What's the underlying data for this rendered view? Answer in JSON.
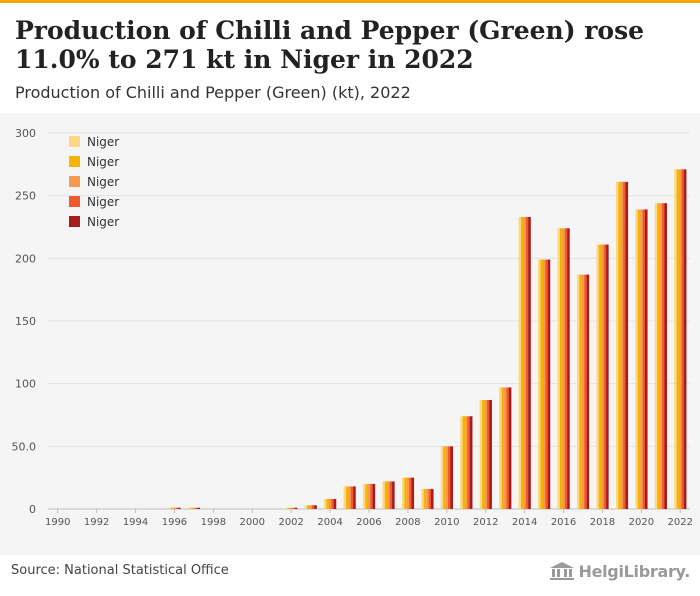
{
  "header": {
    "title": "Production of Chilli and Pepper (Green) rose 11.0% to 271 kt in Niger in 2022",
    "subtitle": "Production of Chilli and Pepper (Green) (kt), 2022"
  },
  "footer": {
    "source": "Source: National Statistical Office",
    "brand": "HelgiLibrary."
  },
  "colors": {
    "accent_bar": "#f2a900",
    "chart_background": "#f5f5f5",
    "series": [
      "#fcd884",
      "#f4b400",
      "#f79a4f",
      "#f0592b",
      "#a61c1c"
    ]
  },
  "chart_data": {
    "type": "bar",
    "title": "Production of Chilli and Pepper (Green) (kt), 2022",
    "xlabel": "",
    "ylabel": "",
    "ylim": [
      0,
      300
    ],
    "y_ticks": [
      "0",
      "50.0",
      "100",
      "150",
      "200",
      "250",
      "300"
    ],
    "x_tick_labels": [
      "1990",
      "1992",
      "1994",
      "1996",
      "1998",
      "2000",
      "2002",
      "2004",
      "2006",
      "2008",
      "2010",
      "2012",
      "2014",
      "2016",
      "2018",
      "2020",
      "2022"
    ],
    "grid": "horizontal",
    "legend_position": "top-left",
    "categories": [
      "1990",
      "1991",
      "1992",
      "1993",
      "1994",
      "1995",
      "1996",
      "1997",
      "1998",
      "1999",
      "2000",
      "2001",
      "2002",
      "2003",
      "2004",
      "2005",
      "2006",
      "2007",
      "2008",
      "2009",
      "2010",
      "2011",
      "2012",
      "2013",
      "2014",
      "2015",
      "2016",
      "2017",
      "2018",
      "2019",
      "2020",
      "2021",
      "2022"
    ],
    "series": [
      {
        "name": "Niger",
        "values": [
          0,
          0,
          0,
          0,
          0,
          0,
          1,
          1,
          0,
          0,
          0,
          0,
          1,
          3,
          8,
          18,
          20,
          22,
          25,
          16,
          50,
          74,
          87,
          97,
          233,
          199,
          224,
          187,
          211,
          261,
          239,
          244,
          271
        ]
      },
      {
        "name": "Niger",
        "values": [
          0,
          0,
          0,
          0,
          0,
          0,
          1,
          1,
          0,
          0,
          0,
          0,
          1,
          3,
          8,
          18,
          20,
          22,
          25,
          16,
          50,
          74,
          87,
          97,
          233,
          199,
          224,
          187,
          211,
          261,
          239,
          244,
          271
        ]
      },
      {
        "name": "Niger",
        "values": [
          0,
          0,
          0,
          0,
          0,
          0,
          1,
          1,
          0,
          0,
          0,
          0,
          1,
          3,
          8,
          18,
          20,
          22,
          25,
          16,
          50,
          74,
          87,
          97,
          233,
          199,
          224,
          187,
          211,
          261,
          239,
          244,
          271
        ]
      },
      {
        "name": "Niger",
        "values": [
          0,
          0,
          0,
          0,
          0,
          0,
          1,
          1,
          0,
          0,
          0,
          0,
          1,
          3,
          8,
          18,
          20,
          22,
          25,
          16,
          50,
          74,
          87,
          97,
          233,
          199,
          224,
          187,
          211,
          261,
          239,
          244,
          271
        ]
      },
      {
        "name": "Niger",
        "values": [
          0,
          0,
          0,
          0,
          0,
          0,
          1,
          1,
          0,
          0,
          0,
          0,
          1,
          3,
          8,
          18,
          20,
          22,
          25,
          16,
          50,
          74,
          87,
          97,
          233,
          199,
          224,
          187,
          211,
          261,
          239,
          244,
          271
        ]
      }
    ]
  }
}
